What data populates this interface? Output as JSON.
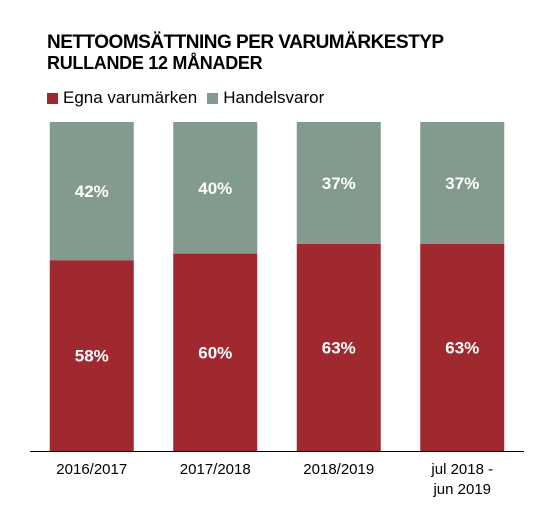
{
  "chart_data": {
    "type": "bar",
    "stacked": true,
    "percent_stacked": true,
    "title": "NETTOOMSÄTTNING PER VARUMÄRKESTYP",
    "subtitle": "RULLANDE 12 MÅNADER",
    "categories": [
      [
        "2016/2017"
      ],
      [
        "2017/2018"
      ],
      [
        "2018/2019"
      ],
      [
        "jul 2018 -",
        "jun 2019"
      ]
    ],
    "series": [
      {
        "name": "Egna varumärken",
        "color": "#a0282f",
        "values": [
          58,
          60,
          63,
          63
        ],
        "labels": [
          "58%",
          "60%",
          "63%",
          "63%"
        ]
      },
      {
        "name": "Handelsvaror",
        "color": "#839a8e",
        "values": [
          42,
          40,
          37,
          37
        ],
        "labels": [
          "42%",
          "40%",
          "37%",
          "37%"
        ]
      }
    ],
    "ylim": [
      0,
      100
    ],
    "grid": false,
    "legend_position": "top-left"
  }
}
